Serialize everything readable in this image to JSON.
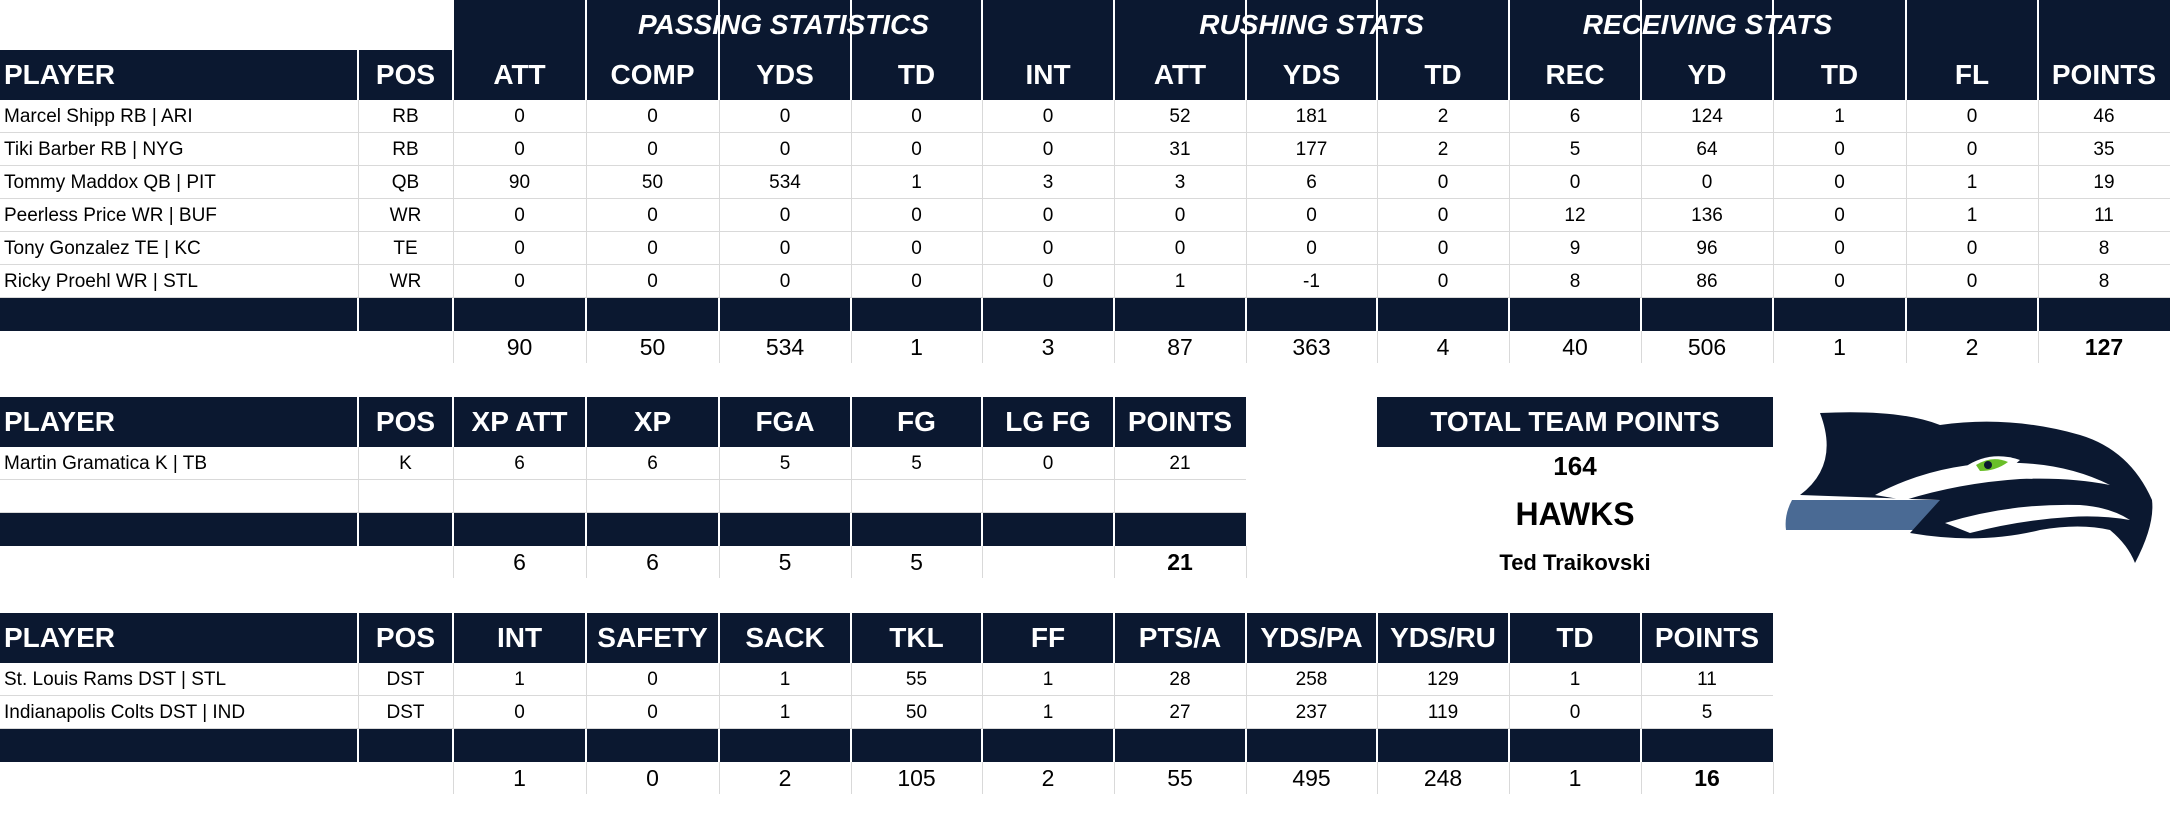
{
  "offense": {
    "group_headers": [
      "PASSING STATISTICS",
      "RUSHING STATS",
      "RECEIVING STATS"
    ],
    "columns": [
      "PLAYER",
      "POS",
      "ATT",
      "COMP",
      "YDS",
      "TD",
      "INT",
      "ATT",
      "YDS",
      "TD",
      "REC",
      "YD",
      "TD",
      "FL",
      "POINTS"
    ],
    "rows": [
      [
        "Marcel Shipp RB | ARI",
        "RB",
        "0",
        "0",
        "0",
        "0",
        "0",
        "52",
        "181",
        "2",
        "6",
        "124",
        "1",
        "0",
        "46"
      ],
      [
        "Tiki Barber RB | NYG",
        "RB",
        "0",
        "0",
        "0",
        "0",
        "0",
        "31",
        "177",
        "2",
        "5",
        "64",
        "0",
        "0",
        "35"
      ],
      [
        "Tommy Maddox QB | PIT",
        "QB",
        "90",
        "50",
        "534",
        "1",
        "3",
        "3",
        "6",
        "0",
        "0",
        "0",
        "0",
        "1",
        "19"
      ],
      [
        "Peerless Price WR | BUF",
        "WR",
        "0",
        "0",
        "0",
        "0",
        "0",
        "0",
        "0",
        "0",
        "12",
        "136",
        "0",
        "1",
        "11"
      ],
      [
        "Tony Gonzalez TE | KC",
        "TE",
        "0",
        "0",
        "0",
        "0",
        "0",
        "0",
        "0",
        "0",
        "9",
        "96",
        "0",
        "0",
        "8"
      ],
      [
        "Ricky Proehl WR | STL",
        "WR",
        "0",
        "0",
        "0",
        "0",
        "0",
        "1",
        "-1",
        "0",
        "8",
        "86",
        "0",
        "0",
        "8"
      ]
    ],
    "totals": [
      "90",
      "50",
      "534",
      "1",
      "3",
      "87",
      "363",
      "4",
      "40",
      "506",
      "1",
      "2",
      "127"
    ]
  },
  "kicker": {
    "columns": [
      "PLAYER",
      "POS",
      "XP ATT",
      "XP",
      "FGA",
      "FG",
      "LG FG",
      "POINTS"
    ],
    "rows": [
      [
        "Martin Gramatica K | TB",
        "K",
        "6",
        "6",
        "5",
        "5",
        "0",
        "21"
      ]
    ],
    "totals": [
      "6",
      "6",
      "5",
      "5",
      "",
      "21"
    ]
  },
  "defense": {
    "columns": [
      "PLAYER",
      "POS",
      "INT",
      "SAFETY",
      "SACK",
      "TKL",
      "FF",
      "PTS/A",
      "YDS/PA",
      "YDS/RU",
      "TD",
      "POINTS"
    ],
    "rows": [
      [
        "St. Louis Rams DST | STL",
        "DST",
        "1",
        "0",
        "1",
        "55",
        "1",
        "28",
        "258",
        "129",
        "1",
        "11"
      ],
      [
        "Indianapolis Colts DST | IND",
        "DST",
        "0",
        "0",
        "1",
        "50",
        "1",
        "27",
        "237",
        "119",
        "0",
        "5"
      ]
    ],
    "totals": [
      "1",
      "0",
      "2",
      "105",
      "2",
      "55",
      "495",
      "248",
      "1",
      "16"
    ]
  },
  "summary": {
    "header": "TOTAL TEAM POINTS",
    "total": "164",
    "team": "HAWKS",
    "owner": "Ted Traikovski"
  },
  "colors": {
    "navy": "#0b1830",
    "logo_blue": "#002244",
    "logo_gray": "#4a6a94",
    "logo_green": "#69be28"
  },
  "logo": {
    "icon": "seahawks-logo-icon"
  }
}
